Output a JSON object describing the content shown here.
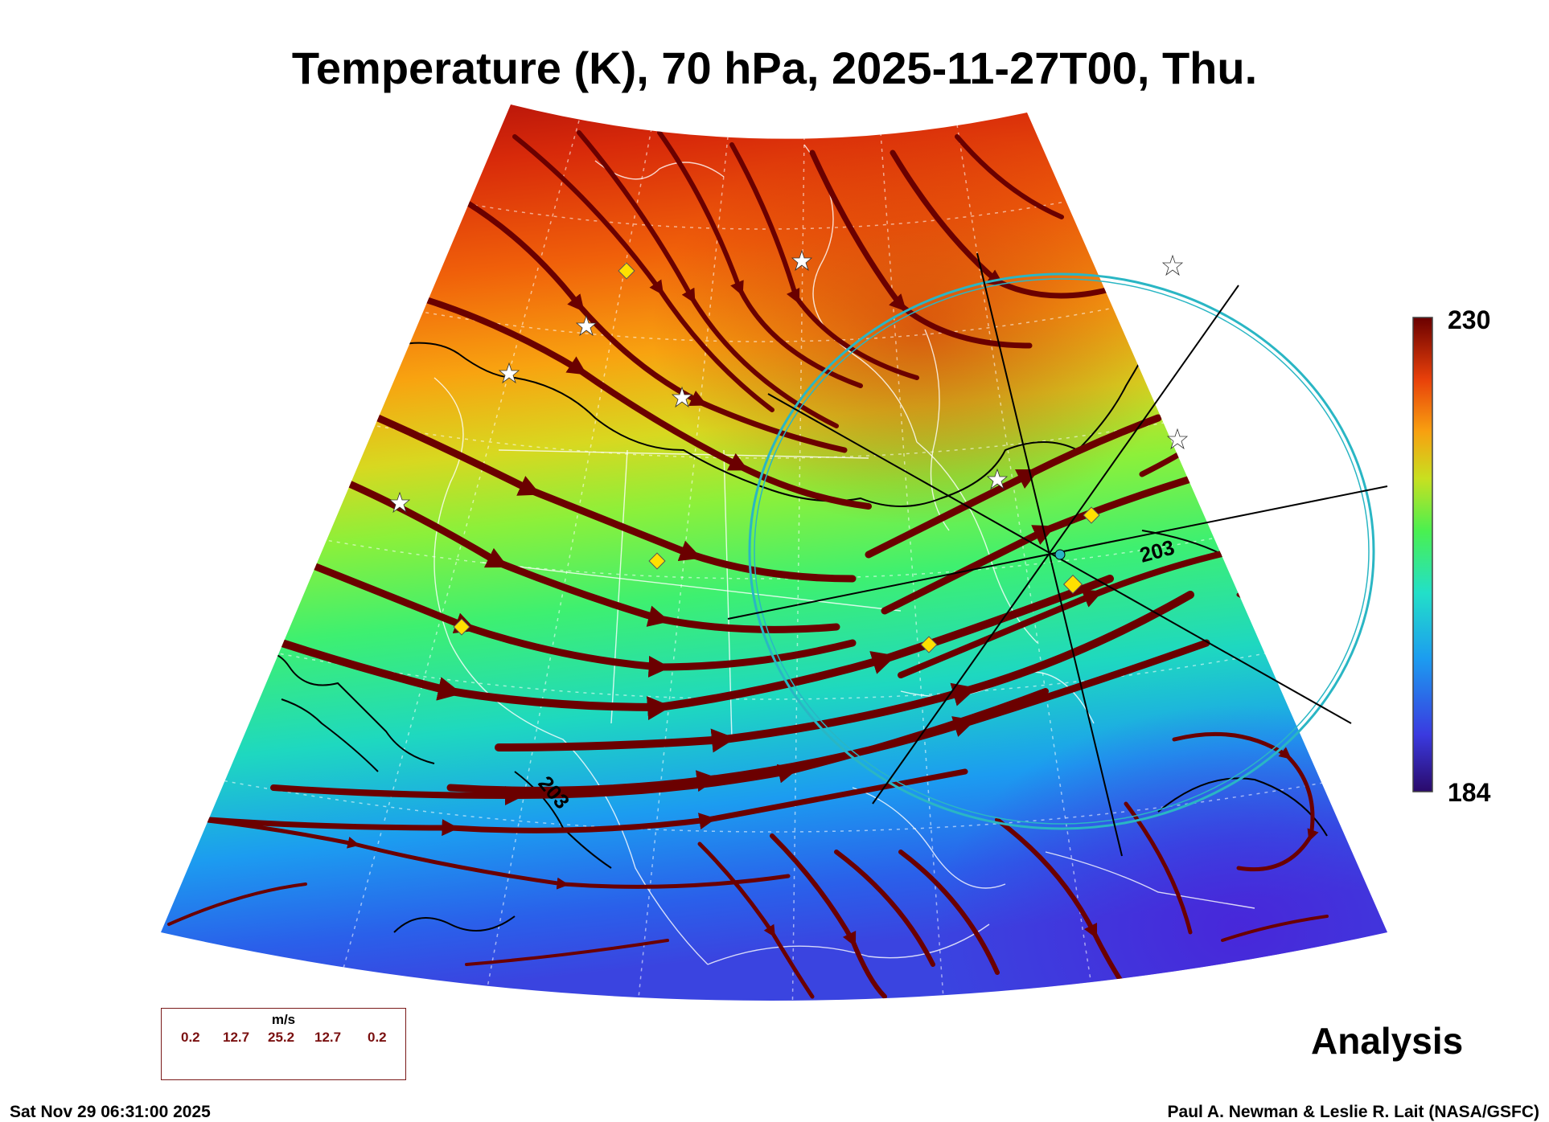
{
  "title": "Temperature (K), 70 hPa, 2025-11-27T00, Thu.",
  "colorbar": {
    "max": "230",
    "min": "184"
  },
  "contour_labels": [
    "203",
    "203"
  ],
  "legend": {
    "unit": "m/s",
    "values": [
      "0.2",
      "12.7",
      "25.2",
      "12.7",
      "0.2"
    ]
  },
  "analysis_label": "Analysis",
  "footer": {
    "timestamp": "Sat Nov 29 06:31:00 2025",
    "credit": "Paul A. Newman & Leslie R. Lait (NASA/GSFC)"
  },
  "colors": {
    "streamline": "#6b0000",
    "circle": "#2ab6c4",
    "marker": "#ffe000",
    "contour": "#000000"
  }
}
